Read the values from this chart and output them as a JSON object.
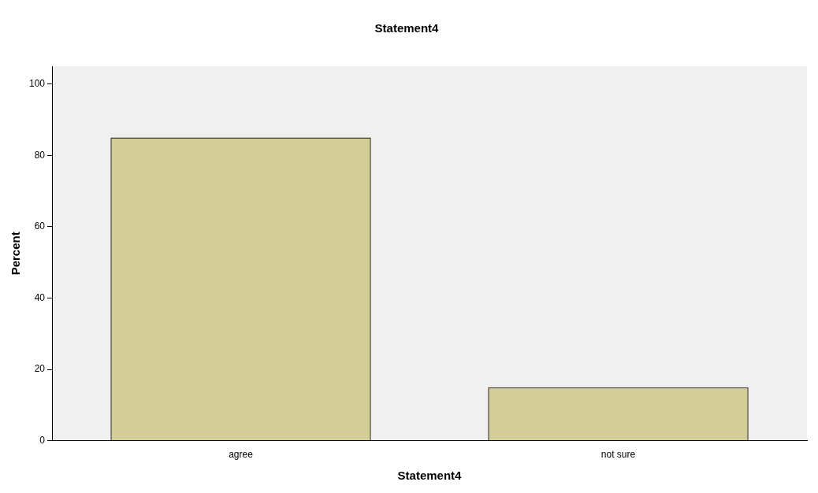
{
  "chart_data": {
    "type": "bar",
    "title": "Statement4",
    "xlabel": "Statement4",
    "ylabel": "Percent",
    "categories": [
      "agree",
      "not sure"
    ],
    "values": [
      85,
      15
    ],
    "color": "#d3ce97",
    "ylim": [
      0,
      105
    ],
    "yticks": [
      0,
      20,
      40,
      60,
      80,
      100
    ],
    "grid": false,
    "legend": false
  }
}
